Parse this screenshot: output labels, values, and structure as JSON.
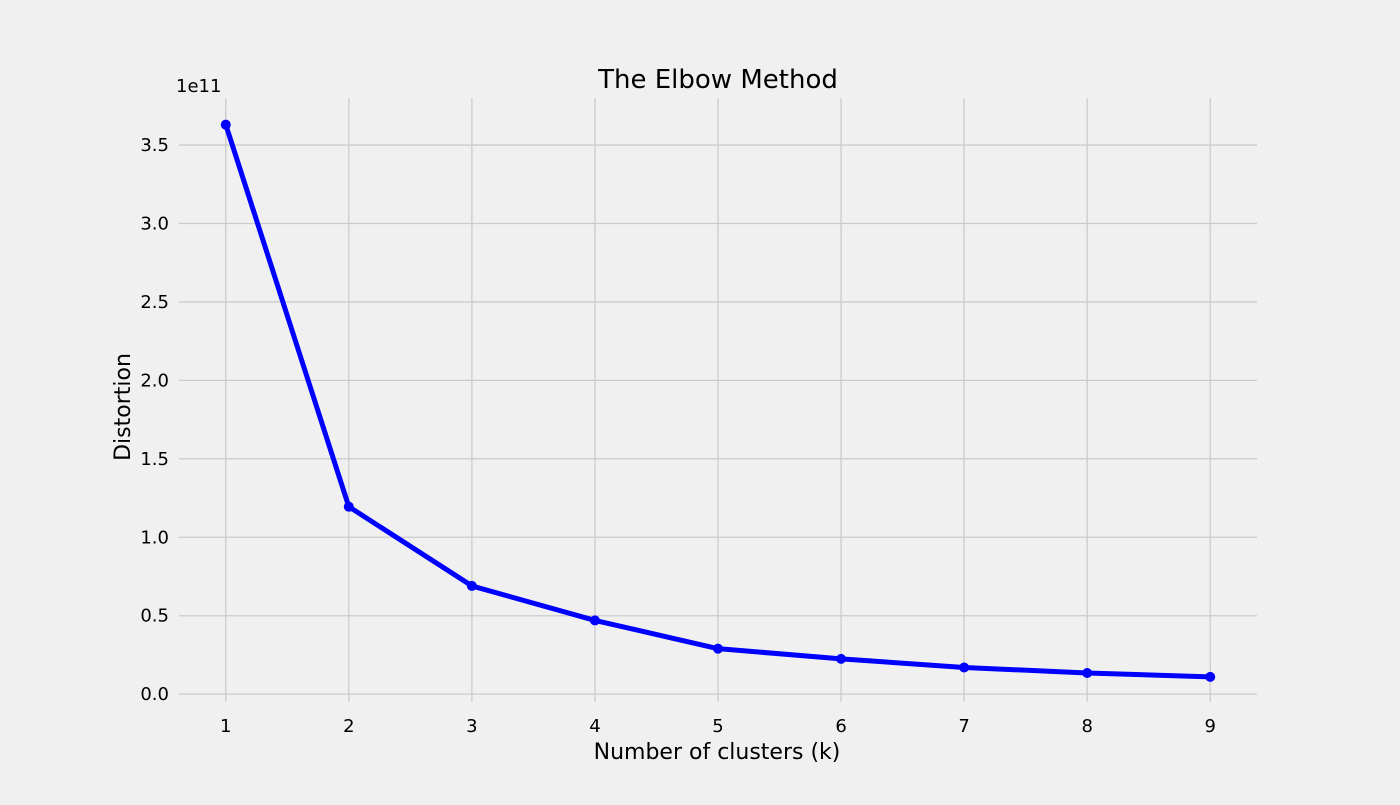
{
  "chart_data": {
    "type": "line",
    "title": "The Elbow Method",
    "xlabel": "Number of clusters (k)",
    "ylabel": "Distortion",
    "y_offset_label": "1e11",
    "x": [
      1,
      2,
      3,
      4,
      5,
      6,
      7,
      8,
      9
    ],
    "series": [
      {
        "values": [
          3.63,
          1.195,
          0.69,
          0.47,
          0.29,
          0.225,
          0.17,
          0.135,
          0.11
        ],
        "color": "#0000ff",
        "marker": "circle"
      }
    ],
    "xlim": [
      0.62,
      9.38
    ],
    "ylim": [
      -0.05,
      3.8
    ],
    "xticks": [
      1,
      2,
      3,
      4,
      5,
      6,
      7,
      8,
      9
    ],
    "xtick_labels": [
      "1",
      "2",
      "3",
      "4",
      "5",
      "6",
      "7",
      "8",
      "9"
    ],
    "yticks": [
      0.0,
      0.5,
      1.0,
      1.5,
      2.0,
      2.5,
      3.0,
      3.5
    ],
    "ytick_labels": [
      "0.0",
      "0.5",
      "1.0",
      "1.5",
      "2.0",
      "2.5",
      "3.0",
      "3.5"
    ],
    "grid": true,
    "legend": "none",
    "background_color": "#f0f0f0",
    "grid_color": "#cbcbcb"
  }
}
